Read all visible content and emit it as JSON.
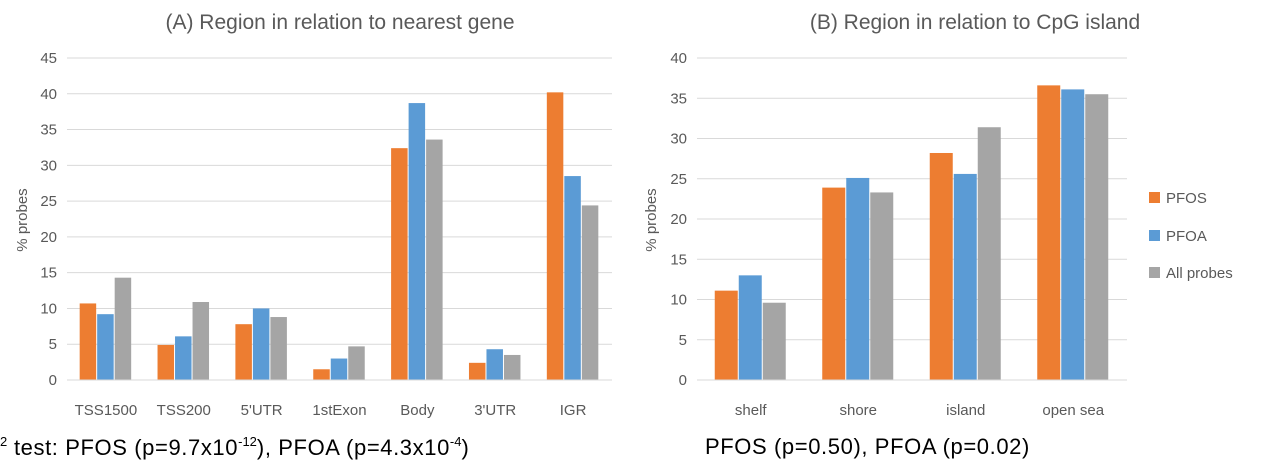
{
  "colors": {
    "PFOS": "#ED7D31",
    "PFOA": "#5B9BD5",
    "All probes": "#A5A5A5",
    "grid": "#D9D9D9",
    "text": "#595959"
  },
  "chart_data": [
    {
      "type": "bar",
      "title": "(A) Region in relation to nearest gene",
      "ylabel": "% probes",
      "ylim": [
        0,
        45
      ],
      "yticks": [
        0,
        5,
        10,
        15,
        20,
        25,
        30,
        35,
        40,
        45
      ],
      "grid": true,
      "categories": [
        "TSS1500",
        "TSS200",
        "5'UTR",
        "1stExon",
        "Body",
        "3'UTR",
        "IGR"
      ],
      "series": [
        {
          "name": "PFOS",
          "values": [
            10.7,
            4.9,
            7.8,
            1.5,
            32.4,
            2.4,
            40.2
          ]
        },
        {
          "name": "PFOA",
          "values": [
            9.2,
            6.1,
            10.0,
            3.0,
            38.7,
            4.3,
            28.5
          ]
        },
        {
          "name": "All probes",
          "values": [
            14.3,
            10.9,
            8.8,
            4.7,
            33.6,
            3.5,
            24.4
          ]
        }
      ]
    },
    {
      "type": "bar",
      "title": "(B) Region in relation to CpG island",
      "ylabel": "% probes",
      "ylim": [
        0,
        40
      ],
      "yticks": [
        0,
        5,
        10,
        15,
        20,
        25,
        30,
        35,
        40
      ],
      "grid": true,
      "legend_position": "right",
      "categories": [
        "shelf",
        "shore",
        "island",
        "open sea"
      ],
      "series": [
        {
          "name": "PFOS",
          "values": [
            11.1,
            23.9,
            28.2,
            36.6
          ]
        },
        {
          "name": "PFOA",
          "values": [
            13.0,
            25.1,
            25.6,
            36.1
          ]
        },
        {
          "name": "All probes",
          "values": [
            9.6,
            23.3,
            31.4,
            35.5
          ]
        }
      ]
    }
  ],
  "footnotes": {
    "left": {
      "p1": "2",
      "p2": " test: PFOS (p=9.7x10",
      "p3": "-12",
      "p4": "), PFOA (p=4.3x10",
      "p5": "-4",
      "p6": ")"
    },
    "right": "PFOS (p=0.50), PFOA (p=0.02)"
  }
}
